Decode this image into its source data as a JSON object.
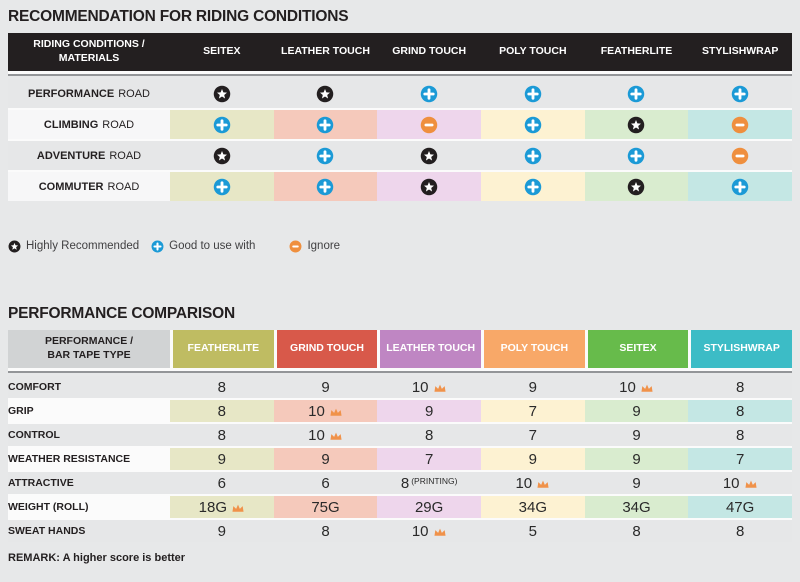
{
  "section1": {
    "title": "RECOMMENDATION FOR RIDING CONDITIONS",
    "table": {
      "header_label_line1": "RIDING CONDITIONS /",
      "header_label_line2": "MATERIALS",
      "columns": [
        "SEITEX",
        "LEATHER TOUCH",
        "GRIND TOUCH",
        "POLY TOUCH",
        "FEATHERLITE",
        "STYLISHWRAP"
      ],
      "column_tints": [
        "#e7e7c6",
        "#f5c9bb",
        "#eed6ec",
        "#fdf2d2",
        "#d9eccf",
        "#c4e7e4"
      ],
      "rows": [
        {
          "label_bold": "PERFORMANCE",
          "label_rest": "ROAD",
          "tinted": false,
          "cells": [
            "star",
            "star",
            "plus",
            "plus",
            "plus",
            "plus"
          ]
        },
        {
          "label_bold": "CLIMBING",
          "label_rest": "ROAD",
          "tinted": true,
          "cells": [
            "plus",
            "plus",
            "minus",
            "plus",
            "star",
            "minus"
          ]
        },
        {
          "label_bold": "ADVENTURE",
          "label_rest": "ROAD",
          "tinted": false,
          "cells": [
            "star",
            "plus",
            "star",
            "plus",
            "plus",
            "minus"
          ]
        },
        {
          "label_bold": "COMMUTER",
          "label_rest": "ROAD",
          "tinted": true,
          "cells": [
            "plus",
            "plus",
            "star",
            "plus",
            "star",
            "plus"
          ]
        }
      ]
    },
    "legend": [
      {
        "icon": "star",
        "label": "Highly Recommended"
      },
      {
        "icon": "plus",
        "label": "Good to use with"
      },
      {
        "icon": "minus",
        "label": "Ignore"
      }
    ]
  },
  "section2": {
    "title": "PERFORMANCE COMPARISON",
    "table": {
      "header_label_line1": "PERFORMANCE /",
      "header_label_line2": "BAR TAPE TYPE",
      "columns": [
        {
          "label": "FEATHERLITE",
          "color": "#bfbc62",
          "tint": "#e7e7c6"
        },
        {
          "label": "GRIND TOUCH",
          "color": "#d8594a",
          "tint": "#f5c9bb"
        },
        {
          "label": "LEATHER TOUCH",
          "color": "#bf86c3",
          "tint": "#eed6ec"
        },
        {
          "label": "POLY TOUCH",
          "color": "#f8a868",
          "tint": "#fdf2d2"
        },
        {
          "label": "SEITEX",
          "color": "#67bb4b",
          "tint": "#d9eccf"
        },
        {
          "label": "STYLISHWRAP",
          "color": "#3cbcc6",
          "tint": "#c4e7e4"
        }
      ],
      "rows": [
        {
          "label": "COMFORT",
          "tinted": false,
          "cells": [
            {
              "value": "8"
            },
            {
              "value": "9"
            },
            {
              "value": "10",
              "crown": true
            },
            {
              "value": "9"
            },
            {
              "value": "10",
              "crown": true
            },
            {
              "value": "8"
            }
          ]
        },
        {
          "label": "GRIP",
          "tinted": true,
          "cells": [
            {
              "value": "8"
            },
            {
              "value": "10",
              "crown": true
            },
            {
              "value": "9"
            },
            {
              "value": "7"
            },
            {
              "value": "9"
            },
            {
              "value": "8"
            }
          ]
        },
        {
          "label": "CONTROL",
          "tinted": false,
          "cells": [
            {
              "value": "8"
            },
            {
              "value": "10",
              "crown": true
            },
            {
              "value": "8"
            },
            {
              "value": "7"
            },
            {
              "value": "9"
            },
            {
              "value": "8"
            }
          ]
        },
        {
          "label": "WEATHER RESISTANCE",
          "tinted": true,
          "cells": [
            {
              "value": "9"
            },
            {
              "value": "9"
            },
            {
              "value": "7"
            },
            {
              "value": "9"
            },
            {
              "value": "9"
            },
            {
              "value": "7"
            }
          ]
        },
        {
          "label": "ATTRACTIVE",
          "tinted": false,
          "cells": [
            {
              "value": "6"
            },
            {
              "value": "6"
            },
            {
              "value": "8",
              "suffix": "(PRINTING)"
            },
            {
              "value": "10",
              "crown": true
            },
            {
              "value": "9"
            },
            {
              "value": "10",
              "crown": true
            }
          ]
        },
        {
          "label": "WEIGHT (ROLL)",
          "tinted": true,
          "cells": [
            {
              "value": "18G",
              "crown": true
            },
            {
              "value": "75G"
            },
            {
              "value": "29G"
            },
            {
              "value": "34G"
            },
            {
              "value": "34G"
            },
            {
              "value": "47G"
            }
          ]
        },
        {
          "label": "SWEAT HANDS",
          "tinted": false,
          "cells": [
            {
              "value": "9"
            },
            {
              "value": "8"
            },
            {
              "value": "10",
              "crown": true
            },
            {
              "value": "5"
            },
            {
              "value": "8"
            },
            {
              "value": "8"
            }
          ]
        }
      ]
    },
    "remark": "REMARK: A higher score is better"
  },
  "icons": {
    "star_color": "#231f20",
    "plus_color": "#1b9ad6",
    "minus_color": "#ef8f3e",
    "crown_color": "#f0924a"
  },
  "chart_data": [
    {
      "type": "table",
      "title": "RECOMMENDATION FOR RIDING CONDITIONS",
      "columns": [
        "RIDING CONDITIONS / MATERIALS",
        "SEITEX",
        "LEATHER TOUCH",
        "GRIND TOUCH",
        "POLY TOUCH",
        "FEATHERLITE",
        "STYLISHWRAP"
      ],
      "rows": [
        [
          "PERFORMANCE ROAD",
          "Highly Recommended",
          "Highly Recommended",
          "Good to use with",
          "Good to use with",
          "Good to use with",
          "Good to use with"
        ],
        [
          "CLIMBING ROAD",
          "Good to use with",
          "Good to use with",
          "Ignore",
          "Good to use with",
          "Highly Recommended",
          "Ignore"
        ],
        [
          "ADVENTURE ROAD",
          "Highly Recommended",
          "Good to use with",
          "Highly Recommended",
          "Good to use with",
          "Good to use with",
          "Ignore"
        ],
        [
          "COMMUTER ROAD",
          "Good to use with",
          "Good to use with",
          "Highly Recommended",
          "Good to use with",
          "Highly Recommended",
          "Good to use with"
        ]
      ],
      "legend": [
        "Highly Recommended",
        "Good to use with",
        "Ignore"
      ]
    },
    {
      "type": "table",
      "title": "PERFORMANCE COMPARISON",
      "columns": [
        "PERFORMANCE / BAR TAPE TYPE",
        "FEATHERLITE",
        "GRIND TOUCH",
        "LEATHER TOUCH",
        "POLY TOUCH",
        "SEITEX",
        "STYLISHWRAP"
      ],
      "rows": [
        [
          "COMFORT",
          "8",
          "9",
          "10 (best)",
          "9",
          "10 (best)",
          "8"
        ],
        [
          "GRIP",
          "8",
          "10 (best)",
          "9",
          "7",
          "9",
          "8"
        ],
        [
          "CONTROL",
          "8",
          "10 (best)",
          "8",
          "7",
          "9",
          "8"
        ],
        [
          "WEATHER RESISTANCE",
          "9",
          "9",
          "7",
          "9",
          "9",
          "7"
        ],
        [
          "ATTRACTIVE",
          "6",
          "6",
          "8 (PRINTING)",
          "10 (best)",
          "9",
          "10 (best)"
        ],
        [
          "WEIGHT (ROLL)",
          "18G (best)",
          "75G",
          "29G",
          "34G",
          "34G",
          "47G"
        ],
        [
          "SWEAT HANDS",
          "9",
          "8",
          "10 (best)",
          "5",
          "8",
          "8"
        ]
      ],
      "remark": "REMARK: A higher score is better"
    }
  ]
}
